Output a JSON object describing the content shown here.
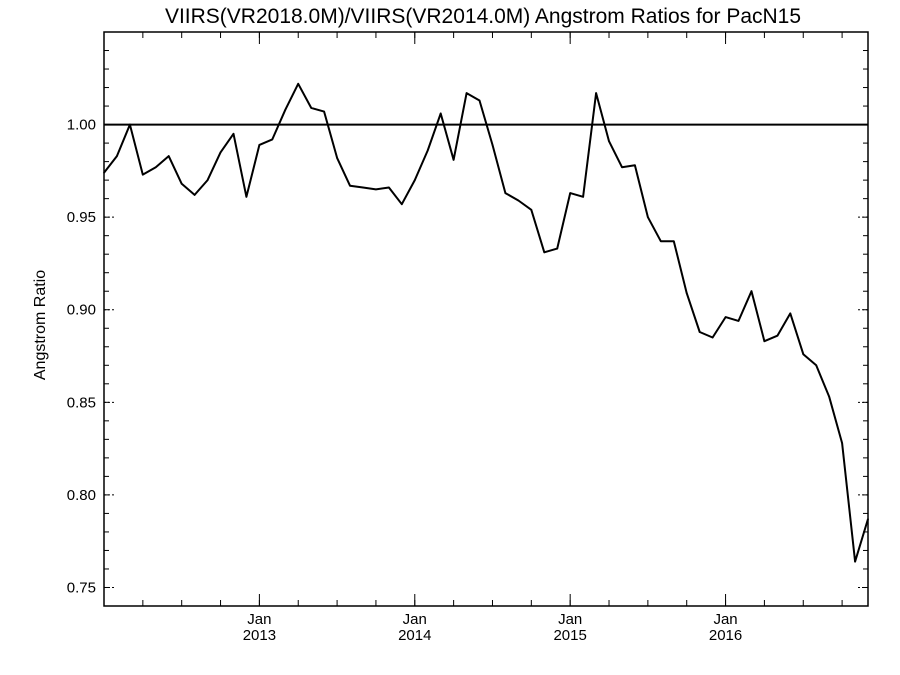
{
  "chart_data": {
    "type": "line",
    "title": "VIIRS(VR2018.0M)/VIIRS(VR2014.0M)  Angstrom Ratios for PacN15",
    "xlabel": "",
    "ylabel": "Angstrom Ratio",
    "xlim": [
      "2012-01",
      "2016-12"
    ],
    "ylim": [
      0.74,
      1.05
    ],
    "y_ticks": [
      0.75,
      0.8,
      0.85,
      0.9,
      0.95,
      1.0
    ],
    "y_tick_labels": [
      "0.75",
      "0.80",
      "0.85",
      "0.90",
      "0.95",
      "1.00"
    ],
    "x_tick_labels": [
      {
        "month": "Jan",
        "year": "2013",
        "date": "2013-01"
      },
      {
        "month": "Jan",
        "year": "2014",
        "date": "2014-01"
      },
      {
        "month": "Jan",
        "year": "2015",
        "date": "2015-01"
      },
      {
        "month": "Jan",
        "year": "2016",
        "date": "2016-01"
      }
    ],
    "reference_line": 1.0,
    "grid": false,
    "series": [
      {
        "x": [
          "2012-01",
          "2012-02",
          "2012-03",
          "2012-04",
          "2012-05",
          "2012-06",
          "2012-07",
          "2012-08",
          "2012-09",
          "2012-10",
          "2012-11",
          "2012-12",
          "2013-01",
          "2013-02",
          "2013-03",
          "2013-04",
          "2013-05",
          "2013-06",
          "2013-07",
          "2013-08",
          "2013-09",
          "2013-10",
          "2013-11",
          "2013-12",
          "2014-01",
          "2014-02",
          "2014-03",
          "2014-04",
          "2014-05",
          "2014-06",
          "2014-07",
          "2014-08",
          "2014-09",
          "2014-10",
          "2014-11",
          "2014-12",
          "2015-01",
          "2015-02",
          "2015-03",
          "2015-04",
          "2015-05",
          "2015-06",
          "2015-07",
          "2015-08",
          "2015-09",
          "2015-10",
          "2015-11",
          "2015-12",
          "2016-01",
          "2016-02",
          "2016-03",
          "2016-04",
          "2016-05",
          "2016-06",
          "2016-07",
          "2016-08",
          "2016-09",
          "2016-10",
          "2016-11",
          "2016-12"
        ],
        "values": [
          0.974,
          0.983,
          1.0,
          0.973,
          0.977,
          0.983,
          0.968,
          0.962,
          0.97,
          0.985,
          0.995,
          0.961,
          0.989,
          0.992,
          1.008,
          1.022,
          1.009,
          1.007,
          0.982,
          0.967,
          0.966,
          0.965,
          0.966,
          0.957,
          0.97,
          0.986,
          1.006,
          0.981,
          1.017,
          1.013,
          0.989,
          0.963,
          0.959,
          0.954,
          0.931,
          0.933,
          0.963,
          0.961,
          1.017,
          0.991,
          0.977,
          0.978,
          0.95,
          0.937,
          0.937,
          0.909,
          0.888,
          0.885,
          0.896,
          0.894,
          0.91,
          0.883,
          0.886,
          0.898,
          0.876,
          0.87,
          0.853,
          0.828,
          0.764,
          0.787
        ]
      }
    ]
  }
}
